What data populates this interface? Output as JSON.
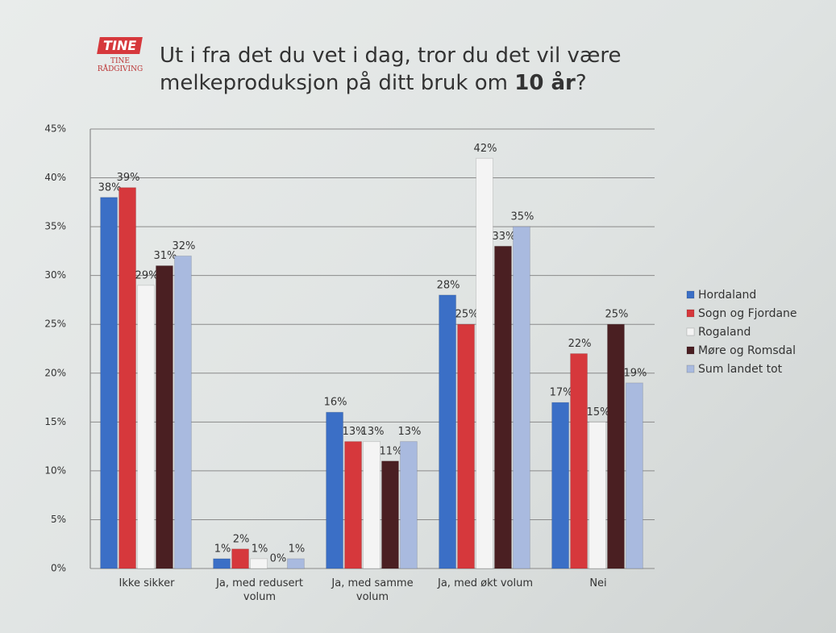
{
  "logo": {
    "name": "TINE",
    "subtitle": "TINE RÅDGIVING"
  },
  "chart_data": {
    "type": "bar",
    "title": "Ut i fra det du vet i dag, tror du det vil være melkeproduksjon på ditt bruk om",
    "title_emphasis": "10 år",
    "title_end": "?",
    "categories": [
      "Ikke sikker",
      "Ja, med redusert volum",
      "Ja, med samme volum",
      "Ja, med økt volum",
      "Nei"
    ],
    "series": [
      {
        "name": "Hordaland",
        "color": "#3b6fc6",
        "values": [
          38,
          1,
          16,
          28,
          17
        ],
        "value_labels": [
          "38%",
          "1%",
          "16%",
          "28%",
          "17%"
        ]
      },
      {
        "name": "Sogn og Fjordane",
        "color": "#d6383c",
        "values": [
          39,
          2,
          13,
          25,
          22
        ],
        "value_labels": [
          "39%",
          "2%",
          "13%",
          "25%",
          "22%"
        ]
      },
      {
        "name": "Rogaland",
        "color": "#f4f4f4",
        "values": [
          29,
          1,
          13,
          42,
          15
        ],
        "value_labels": [
          "29%",
          "1%",
          "13%",
          "42%",
          "15%"
        ]
      },
      {
        "name": "Møre og Romsdal",
        "color": "#4a1f22",
        "values": [
          31,
          0,
          11,
          33,
          25
        ],
        "value_labels": [
          "31%",
          "0%",
          "11%",
          "33%",
          "25%"
        ]
      },
      {
        "name": "Sum landet tot",
        "color": "#a9badf",
        "values": [
          32,
          1,
          13,
          35,
          19
        ],
        "value_labels": [
          "32%",
          "1%",
          "13%",
          "35%",
          "19%"
        ]
      }
    ],
    "ylim": [
      0,
      45
    ],
    "yticks": [
      {
        "value": 0,
        "label": "0%"
      },
      {
        "value": 5,
        "label": "5%"
      },
      {
        "value": 10,
        "label": "10%"
      },
      {
        "value": 15,
        "label": "15%"
      },
      {
        "value": 20,
        "label": "20%"
      },
      {
        "value": 25,
        "label": "25%"
      },
      {
        "value": 30,
        "label": "30%"
      },
      {
        "value": 35,
        "label": "35%"
      },
      {
        "value": 40,
        "label": "40%"
      },
      {
        "value": 45,
        "label": "45%"
      }
    ],
    "grid": true,
    "legend": "right"
  }
}
